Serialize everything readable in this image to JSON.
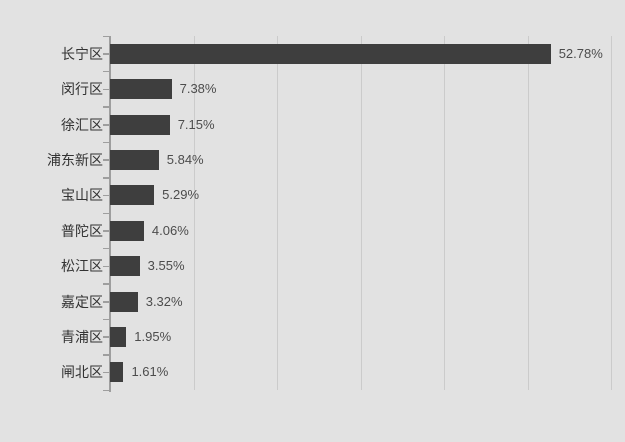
{
  "chart_data": {
    "type": "bar",
    "orientation": "horizontal",
    "title": "",
    "xlabel": "",
    "ylabel": "",
    "categories": [
      "长宁区",
      "闵行区",
      "徐汇区",
      "浦东新区",
      "宝山区",
      "普陀区",
      "松江区",
      "嘉定区",
      "青浦区",
      "闸北区"
    ],
    "values": [
      52.78,
      7.38,
      7.15,
      5.84,
      5.29,
      4.06,
      3.55,
      3.32,
      1.95,
      1.61
    ],
    "value_labels": [
      "52.78%",
      "7.38%",
      "7.15%",
      "5.84%",
      "5.29%",
      "4.06%",
      "3.55%",
      "3.32%",
      "1.95%",
      "1.61%"
    ],
    "xlim": [
      0,
      60
    ],
    "gridline_interval": 10,
    "grid": true,
    "legend": "none",
    "colors": {
      "background": "#e2e2e2",
      "bar": "#3e3e3e",
      "gridline": "#cbcbcb",
      "axis": "#9e9e9e",
      "category_label": "#333333",
      "value_label": "#4c4c4c"
    }
  }
}
